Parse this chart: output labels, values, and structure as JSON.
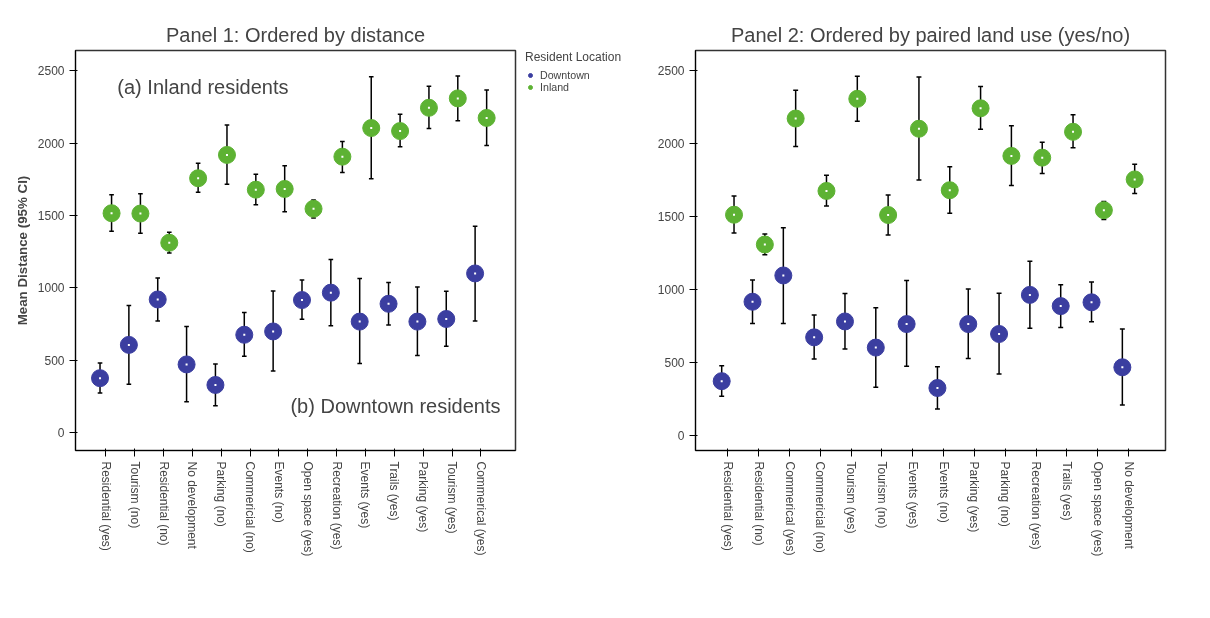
{
  "chart_data": [
    {
      "type": "scatter",
      "title": "Panel 1: Ordered by distance",
      "ylabel": "Mean Distance (95% CI)",
      "legend_title": "Resident Location",
      "legend": "right",
      "marker": "circle",
      "grid": false,
      "annotations": [
        "(a) Inland residents",
        "(b) Downtown residents"
      ],
      "categories": [
        "Residential (yes)",
        "Tourism (no)",
        "Residential (no)",
        "No development",
        "Parking (no)",
        "Commericial (no)",
        "Events (no)",
        "Open space (yes)",
        "Recreation (yes)",
        "Events (yes)",
        "Trails (yes)",
        "Parking (yes)",
        "Tourism (yes)",
        "Commerical (yes)"
      ],
      "ylim": [
        -125,
        2640
      ],
      "yticks": [
        0,
        500,
        1000,
        1500,
        2000,
        2500
      ],
      "series": [
        {
          "name": "Downtown",
          "color": "#3b3ea0",
          "values": [
            375,
            605,
            919,
            470,
            328,
            675,
            698,
            915,
            966,
            766,
            889,
            766,
            784,
            1099
          ],
          "errors": [
            [
              272,
              480
            ],
            [
              333,
              878
            ],
            [
              770,
              1068
            ],
            [
              212,
              733
            ],
            [
              184,
              473
            ],
            [
              526,
              829
            ],
            [
              424,
              978
            ],
            [
              782,
              1054
            ],
            [
              738,
              1196
            ],
            [
              477,
              1064
            ],
            [
              743,
              1036
            ],
            [
              531,
              1006
            ],
            [
              596,
              975
            ],
            [
              770,
              1425
            ]
          ]
        },
        {
          "name": "Inland",
          "color": "#5db233",
          "values": [
            1515,
            1513,
            1311,
            1757,
            1918,
            1678,
            1683,
            1546,
            1906,
            2104,
            2083,
            2244,
            2309,
            2174
          ],
          "errors": [
            [
              1390,
              1643
            ],
            [
              1376,
              1650
            ],
            [
              1241,
              1383
            ],
            [
              1660,
              1860
            ],
            [
              1716,
              2125
            ],
            [
              1574,
              1785
            ],
            [
              1525,
              1844
            ],
            [
              1483,
              1606
            ],
            [
              1797,
              2011
            ],
            [
              1753,
              2458
            ],
            [
              1974,
              2200
            ],
            [
              2100,
              2393
            ],
            [
              2155,
              2463
            ],
            [
              1983,
              2367
            ]
          ]
        }
      ]
    },
    {
      "type": "scatter",
      "title": "Panel 2: Ordered by paired land use (yes/no)",
      "marker": "circle",
      "grid": false,
      "categories": [
        "Residential (yes)",
        "Residential (no)",
        "Commerical (yes)",
        "Commericial (no)",
        "Tourism (yes)",
        "Tourism (no)",
        "Events (yes)",
        "Events (no)",
        "Parking (yes)",
        "Parking (no)",
        "Recreation (yes)",
        "Trails (yes)",
        "Open space (yes)",
        "No development"
      ],
      "ylim": [
        -100,
        2640
      ],
      "yticks": [
        0,
        500,
        1000,
        1500,
        2000,
        2500
      ],
      "series": [
        {
          "color": "#3b3ea0",
          "values": [
            375,
            919,
            1099,
            675,
            784,
            605,
            766,
            328,
            766,
            698,
            966,
            889,
            915,
            470
          ],
          "errors": [
            [
              272,
              480
            ],
            [
              770,
              1068
            ],
            [
              770,
              1425
            ],
            [
              526,
              829
            ],
            [
              596,
              975
            ],
            [
              333,
              878
            ],
            [
              477,
              1064
            ],
            [
              184,
              473
            ],
            [
              531,
              1006
            ],
            [
              424,
              978
            ],
            [
              738,
              1196
            ],
            [
              743,
              1036
            ],
            [
              782,
              1054
            ],
            [
              212,
              733
            ]
          ]
        },
        {
          "color": "#5db233",
          "values": [
            1515,
            1311,
            2174,
            1678,
            2309,
            1513,
            2104,
            1683,
            2244,
            1918,
            1906,
            2083,
            1546,
            1757
          ],
          "errors": [
            [
              1390,
              1643
            ],
            [
              1241,
              1383
            ],
            [
              1983,
              2367
            ],
            [
              1574,
              1785
            ],
            [
              2155,
              2463
            ],
            [
              1376,
              1650
            ],
            [
              1753,
              2458
            ],
            [
              1525,
              1844
            ],
            [
              2100,
              2393
            ],
            [
              1716,
              2125
            ],
            [
              1797,
              2011
            ],
            [
              1974,
              2200
            ],
            [
              1483,
              1606
            ],
            [
              1660,
              1860
            ]
          ]
        }
      ]
    }
  ]
}
